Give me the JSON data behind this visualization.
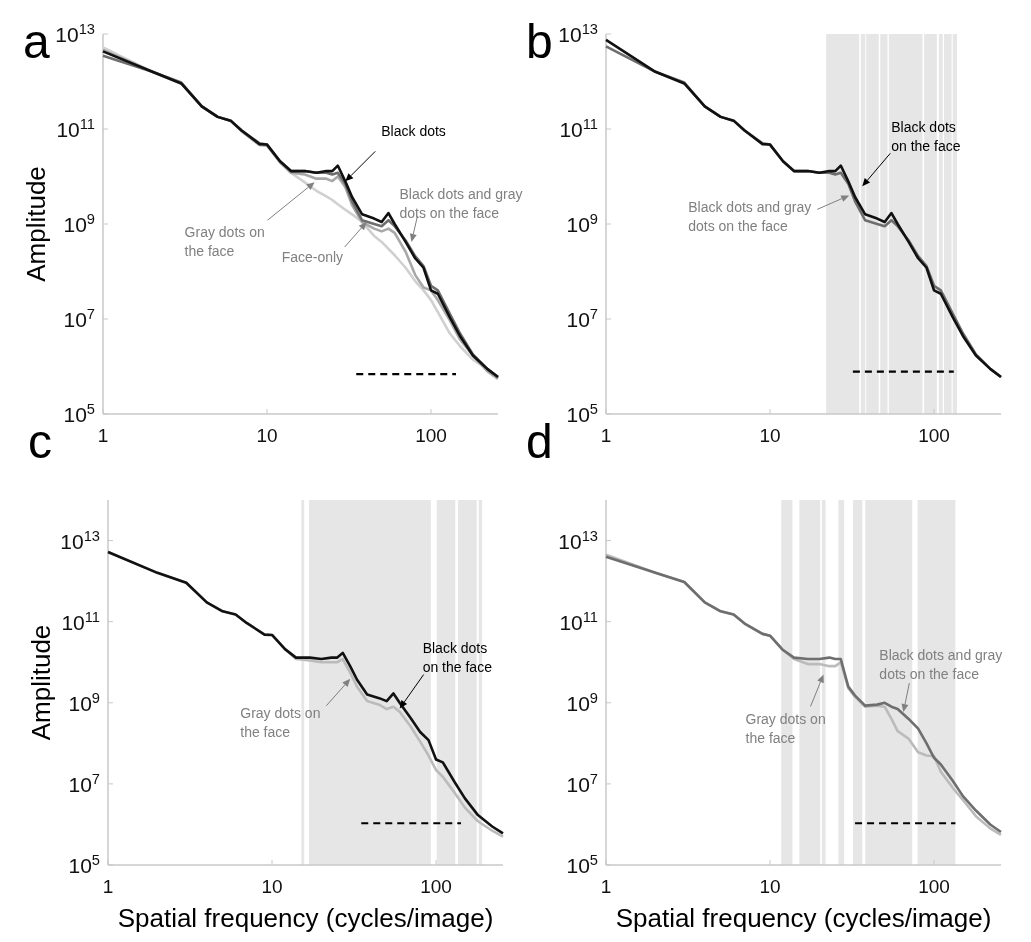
{
  "chart_data": [
    {
      "type": "line",
      "title": "a",
      "ylabel": "Amplitude",
      "log": "xy",
      "xlim": [
        1,
        256
      ],
      "ylim": [
        100000.0,
        10000000000000.0
      ],
      "xticks": [
        1,
        10,
        100
      ],
      "yticks": [
        {
          "value": 100000.0,
          "label": "10$^{5}$"
        },
        {
          "value": 10000000.0,
          "label": "10$^{7}$"
        },
        {
          "value": 1000000000.0,
          "label": "10$^{9}$"
        },
        {
          "value": 100000000000.0,
          "label": "10$^{11}$"
        },
        {
          "value": 10000000000000.0,
          "label": "10$^{13}$"
        }
      ],
      "x": [
        1,
        2,
        3,
        4,
        5,
        6,
        7,
        9,
        10,
        12,
        14,
        17,
        20,
        23,
        25,
        27,
        30,
        33,
        38,
        45,
        50,
        55,
        60,
        70,
        80,
        90,
        100,
        110,
        130,
        150,
        180,
        220,
        256
      ],
      "series": [
        {
          "color": "#d0d0d0",
          "values": [
            5200000000000.0,
            1600000000000.0,
            910000000000.0,
            300000000000.0,
            180000000000.0,
            150000000000.0,
            90000000000.0,
            46000000000.0,
            45000000000.0,
            20000000000.0,
            12000000000.0,
            7500000000.0,
            5000000000.0,
            3800000000.0,
            3200000000.0,
            2600000000.0,
            2000000000.0,
            1600000000.0,
            1100000000.0,
            560000000.0,
            420000000.0,
            300000000.0,
            220000000.0,
            120000000.0,
            63000000.0,
            40000000.0,
            25000000.0,
            14000000.0,
            5000000.0,
            2700000.0,
            1400000.0,
            900000.0,
            560000.0
          ]
        },
        {
          "color": "#a8a8a8",
          "values": [
            4600000000000.0,
            1600000000000.0,
            910000000000.0,
            300000000000.0,
            180000000000.0,
            150000000000.0,
            90000000000.0,
            46000000000.0,
            45000000000.0,
            20000000000.0,
            12000000000.0,
            11000000000.0,
            9000000000.0,
            9000000000.0,
            8000000000.0,
            10000000000.0,
            6000000000.0,
            2500000000.0,
            1100000000.0,
            800000000.0,
            700000000.0,
            800000000.0,
            650000000.0,
            260000000.0,
            85000000.0,
            46000000.0,
            40000000.0,
            25000000.0,
            9500000.0,
            3700000.0,
            1700000.0,
            800000.0,
            550000.0
          ]
        },
        {
          "color": "#6e6e6e",
          "values": [
            3500000000000.0,
            1600000000000.0,
            950000000000.0,
            300000000000.0,
            180000000000.0,
            150000000000.0,
            93000000000.0,
            50000000000.0,
            47000000000.0,
            21000000000.0,
            13000000000.0,
            13000000000.0,
            12000000000.0,
            12000000000.0,
            11000000000.0,
            12000000000.0,
            7000000000.0,
            3000000000.0,
            1200000000.0,
            1000000000.0,
            900000000.0,
            1200000000.0,
            900000000.0,
            450000000.0,
            210000000.0,
            130000000.0,
            50000000.0,
            40000000.0,
            13000000.0,
            5000000.0,
            1800000.0,
            900000.0,
            600000.0
          ]
        },
        {
          "color": "#111111",
          "values": [
            4300000000000.0,
            1600000000000.0,
            910000000000.0,
            300000000000.0,
            180000000000.0,
            150000000000.0,
            93000000000.0,
            48000000000.0,
            47000000000.0,
            21000000000.0,
            13000000000.0,
            13000000000.0,
            12000000000.0,
            13000000000.0,
            13000000000.0,
            17000000000.0,
            7900000000.0,
            3700000000.0,
            1600000000.0,
            1300000000.0,
            1100000000.0,
            1700000000.0,
            1000000000.0,
            420000000.0,
            190000000.0,
            120000000.0,
            40000000.0,
            34000000.0,
            11000000.0,
            4400000.0,
            1700000.0,
            890000.0,
            600000.0
          ]
        },
        {
          "color": "#000000",
          "line_style": "dashed",
          "x": [
            35,
            142
          ],
          "values": [
            690000.0,
            690000.0
          ]
        }
      ],
      "annotations": [
        {
          "text": "Black dots",
          "x": 30,
          "y": 7900000000.0
        },
        {
          "text": "Black dots and gray\ndots on the face",
          "x": 76,
          "y": 420000000.0
        },
        {
          "text": "Gray dots on\nthe face",
          "x": 19.5,
          "y": 7600000000.0
        },
        {
          "text": "Face-only",
          "x": 40.5,
          "y": 1100000000.0
        }
      ]
    },
    {
      "type": "line",
      "title": "b",
      "log": "xy",
      "xlim": [
        1,
        256
      ],
      "ylim": [
        100000.0,
        10000000000000.0
      ],
      "xticks": [
        1,
        10,
        100
      ],
      "yticks": [
        {
          "value": 100000.0,
          "label": "10$^{5}$"
        },
        {
          "value": 10000000.0,
          "label": "10$^{7}$"
        },
        {
          "value": 1000000000.0,
          "label": "10$^{9}$"
        },
        {
          "value": 100000000000.0,
          "label": "10$^{11}$"
        },
        {
          "value": 10000000000000.0,
          "label": "10$^{13}$"
        }
      ],
      "x": [
        1,
        2,
        3,
        4,
        5,
        6,
        7,
        9,
        10,
        12,
        14,
        17,
        20,
        23,
        25,
        27,
        30,
        33,
        38,
        45,
        50,
        55,
        60,
        70,
        80,
        90,
        100,
        110,
        130,
        150,
        180,
        220,
        256
      ],
      "bands": [
        {
          "axis": "x",
          "from": 22,
          "to": 35,
          "color": "#e6e6e6"
        },
        {
          "axis": "x",
          "from": 35.8,
          "to": 38.1,
          "color": "#e6e6e6"
        },
        {
          "axis": "x",
          "from": 38.6,
          "to": 46,
          "color": "#e6e6e6"
        },
        {
          "axis": "x",
          "from": 47,
          "to": 52,
          "color": "#e6e6e6"
        },
        {
          "axis": "x",
          "from": 53,
          "to": 85,
          "color": "#e6e6e6"
        },
        {
          "axis": "x",
          "from": 87,
          "to": 104,
          "color": "#e6e6e6"
        },
        {
          "axis": "x",
          "from": 107,
          "to": 113,
          "color": "#e6e6e6"
        },
        {
          "axis": "x",
          "from": 115,
          "to": 128,
          "color": "#e6e6e6"
        },
        {
          "axis": "x",
          "from": 130,
          "to": 138,
          "color": "#e6e6e6"
        }
      ],
      "series": [
        {
          "color": "#6e6e6e",
          "values": [
            5500000000000.0,
            1600000000000.0,
            950000000000.0,
            300000000000.0,
            180000000000.0,
            150000000000.0,
            93000000000.0,
            50000000000.0,
            47000000000.0,
            21000000000.0,
            13000000000.0,
            13000000000.0,
            12000000000.0,
            12000000000.0,
            11000000000.0,
            12000000000.0,
            7000000000.0,
            3000000000.0,
            1200000000.0,
            1000000000.0,
            900000000.0,
            1200000000.0,
            900000000.0,
            450000000.0,
            210000000.0,
            130000000.0,
            50000000.0,
            40000000.0,
            13000000.0,
            5000000.0,
            1800000.0,
            900000.0,
            600000.0
          ]
        },
        {
          "color": "#111111",
          "values": [
            7500000000000.0,
            1600000000000.0,
            910000000000.0,
            300000000000.0,
            180000000000.0,
            150000000000.0,
            93000000000.0,
            48000000000.0,
            47000000000.0,
            21000000000.0,
            13000000000.0,
            13000000000.0,
            12000000000.0,
            13000000000.0,
            13000000000.0,
            17000000000.0,
            7900000000.0,
            3700000000.0,
            1600000000.0,
            1300000000.0,
            1100000000.0,
            1700000000.0,
            1000000000.0,
            420000000.0,
            190000000.0,
            120000000.0,
            40000000.0,
            34000000.0,
            11000000.0,
            4400000.0,
            1700000.0,
            890000.0,
            600000.0
          ]
        },
        {
          "color": "#000000",
          "line_style": "dashed",
          "x": [
            32,
            132
          ],
          "values": [
            780000.0,
            780000.0
          ]
        }
      ],
      "annotations": [
        {
          "text": "Black dots\non the face",
          "x": 36.5,
          "y": 6200000000.0
        },
        {
          "text": "Black dots and gray\ndots on the face",
          "x": 30.4,
          "y": 4000000000.0
        }
      ]
    },
    {
      "type": "line",
      "title": "c",
      "xlabel": "Spatial frequency (cycles/image)",
      "ylabel": "Amplitude",
      "log": "xy",
      "xlim": [
        1,
        256
      ],
      "ylim": [
        100000.0,
        100000000000000.0
      ],
      "xticks": [
        1,
        10,
        100
      ],
      "yticks": [
        {
          "value": 100000.0,
          "label": "10$^{5}$"
        },
        {
          "value": 10000000.0,
          "label": "10$^{7}$"
        },
        {
          "value": 1000000000.0,
          "label": "10$^{9}$"
        },
        {
          "value": 100000000000.0,
          "label": "10$^{11}$"
        },
        {
          "value": 10000000000000.0,
          "label": "10$^{13}$"
        }
      ],
      "x": [
        1,
        2,
        3,
        4,
        5,
        6,
        7,
        9,
        10,
        12,
        14,
        17,
        20,
        23,
        25,
        27,
        30,
        33,
        38,
        45,
        50,
        55,
        60,
        70,
        80,
        90,
        100,
        110,
        130,
        150,
        180,
        220,
        256
      ],
      "bands": [
        {
          "axis": "x",
          "from": 15.1,
          "to": 15.7,
          "color": "#e6e6e6"
        },
        {
          "axis": "x",
          "from": 16.8,
          "to": 93,
          "color": "#e6e6e6"
        },
        {
          "axis": "x",
          "from": 101,
          "to": 131,
          "color": "#e6e6e6"
        },
        {
          "axis": "x",
          "from": 136,
          "to": 177,
          "color": "#e6e6e6"
        },
        {
          "axis": "x",
          "from": 182,
          "to": 191,
          "color": "#e6e6e6"
        }
      ],
      "series": [
        {
          "color": "#bbbbbb",
          "values": [
            5200000000000.0,
            1600000000000.0,
            910000000000.0,
            300000000000.0,
            180000000000.0,
            150000000000.0,
            93000000000.0,
            48000000000.0,
            47000000000.0,
            21000000000.0,
            12000000000.0,
            11000000000.0,
            10000000000.0,
            10000000000.0,
            10000000000.0,
            12000000000.0,
            5500000000.0,
            2500000000.0,
            1100000000.0,
            900000000.0,
            700000000.0,
            800000000.0,
            600000000.0,
            260000000.0,
            110000000.0,
            50000000.0,
            22000000.0,
            15000000.0,
            6000000.0,
            2600000.0,
            1200000.0,
            700000.0,
            500000.0
          ]
        },
        {
          "color": "#111111",
          "values": [
            5200000000000.0,
            1600000000000.0,
            910000000000.0,
            300000000000.0,
            180000000000.0,
            150000000000.0,
            93000000000.0,
            48000000000.0,
            47000000000.0,
            21000000000.0,
            13000000000.0,
            13000000000.0,
            12000000000.0,
            13000000000.0,
            13000000000.0,
            17000000000.0,
            7900000000.0,
            3700000000.0,
            1600000000.0,
            1300000000.0,
            1100000000.0,
            1700000000.0,
            1000000000.0,
            420000000.0,
            190000000.0,
            120000000.0,
            40000000.0,
            34000000.0,
            11000000.0,
            4400000.0,
            1700000.0,
            890000.0,
            600000.0
          ]
        },
        {
          "color": "#000000",
          "line_style": "dashed",
          "x": [
            35,
            142
          ],
          "values": [
            1070000.0,
            1070000.0
          ]
        }
      ],
      "annotations": [
        {
          "text": "Black dots\non the face",
          "x": 60,
          "y": 720000000.0
        },
        {
          "text": "Gray dots on\nthe face",
          "x": 30,
          "y": 3900000000.0
        }
      ]
    },
    {
      "type": "line",
      "title": "d",
      "xlabel": "Spatial frequency (cycles/image)",
      "log": "xy",
      "xlim": [
        1,
        256
      ],
      "ylim": [
        100000.0,
        100000000000000.0
      ],
      "xticks": [
        1,
        10,
        100
      ],
      "yticks": [
        {
          "value": 100000.0,
          "label": "10$^{5}$"
        },
        {
          "value": 10000000.0,
          "label": "10$^{7}$"
        },
        {
          "value": 1000000000.0,
          "label": "10$^{9}$"
        },
        {
          "value": 100000000000.0,
          "label": "10$^{11}$"
        },
        {
          "value": 10000000000000.0,
          "label": "10$^{13}$"
        }
      ],
      "x": [
        1,
        2,
        3,
        4,
        5,
        6,
        7,
        9,
        10,
        12,
        14,
        17,
        20,
        23,
        25,
        27,
        30,
        33,
        38,
        45,
        50,
        55,
        60,
        70,
        80,
        90,
        100,
        110,
        130,
        150,
        180,
        220,
        256
      ],
      "bands": [
        {
          "axis": "x",
          "from": 11.7,
          "to": 13.7,
          "color": "#e6e6e6"
        },
        {
          "axis": "x",
          "from": 15.1,
          "to": 20.2,
          "color": "#e6e6e6"
        },
        {
          "axis": "x",
          "from": 20.7,
          "to": 21.8,
          "color": "#e6e6e6"
        },
        {
          "axis": "x",
          "from": 26.1,
          "to": 28.3,
          "color": "#e6e6e6"
        },
        {
          "axis": "x",
          "from": 32.1,
          "to": 36.5,
          "color": "#e6e6e6"
        },
        {
          "axis": "x",
          "from": 38.1,
          "to": 73.6,
          "color": "#e6e6e6"
        },
        {
          "axis": "x",
          "from": 79.4,
          "to": 135,
          "color": "#e6e6e6"
        }
      ],
      "series": [
        {
          "color": "#bbbbbb",
          "values": [
            4500000000000.0,
            1600000000000.0,
            950000000000.0,
            300000000000.0,
            180000000000.0,
            150000000000.0,
            90000000000.0,
            50000000000.0,
            45000000000.0,
            20000000000.0,
            12000000000.0,
            9000000000.0,
            9000000000.0,
            8000000000.0,
            8000000000.0,
            10000000000.0,
            2300000000.0,
            1400000000.0,
            800000000.0,
            850000000.0,
            800000000.0,
            400000000.0,
            200000000.0,
            130000000.0,
            60000000.0,
            50000000.0,
            48000000.0,
            20000000.0,
            8000000.0,
            4000000.0,
            1600000.0,
            800000.0,
            550000.0
          ]
        },
        {
          "color": "#6e6e6e",
          "values": [
            4000000000000.0,
            1600000000000.0,
            950000000000.0,
            300000000000.0,
            180000000000.0,
            150000000000.0,
            90000000000.0,
            50000000000.0,
            45000000000.0,
            20000000000.0,
            13000000000.0,
            12000000000.0,
            12000000000.0,
            13000000000.0,
            12000000000.0,
            12000000000.0,
            2500000000.0,
            1500000000.0,
            850000000.0,
            900000000.0,
            1000000000.0,
            800000000.0,
            700000000.0,
            400000000.0,
            230000000.0,
            100000000.0,
            44000000.0,
            30000000.0,
            12000000.0,
            5000000.0,
            2200000.0,
            1000000.0,
            650000.0
          ]
        },
        {
          "color": "#000000",
          "line_style": "dashed",
          "x": [
            33,
            135
          ],
          "values": [
            1070000.0,
            1070000.0
          ]
        }
      ],
      "annotations": [
        {
          "text": "Black dots and gray\ndots on the face",
          "x": 65,
          "y": 590000000.0
        },
        {
          "text": "Gray dots on\nthe face",
          "x": 21.2,
          "y": 5000000000.0
        }
      ]
    }
  ]
}
